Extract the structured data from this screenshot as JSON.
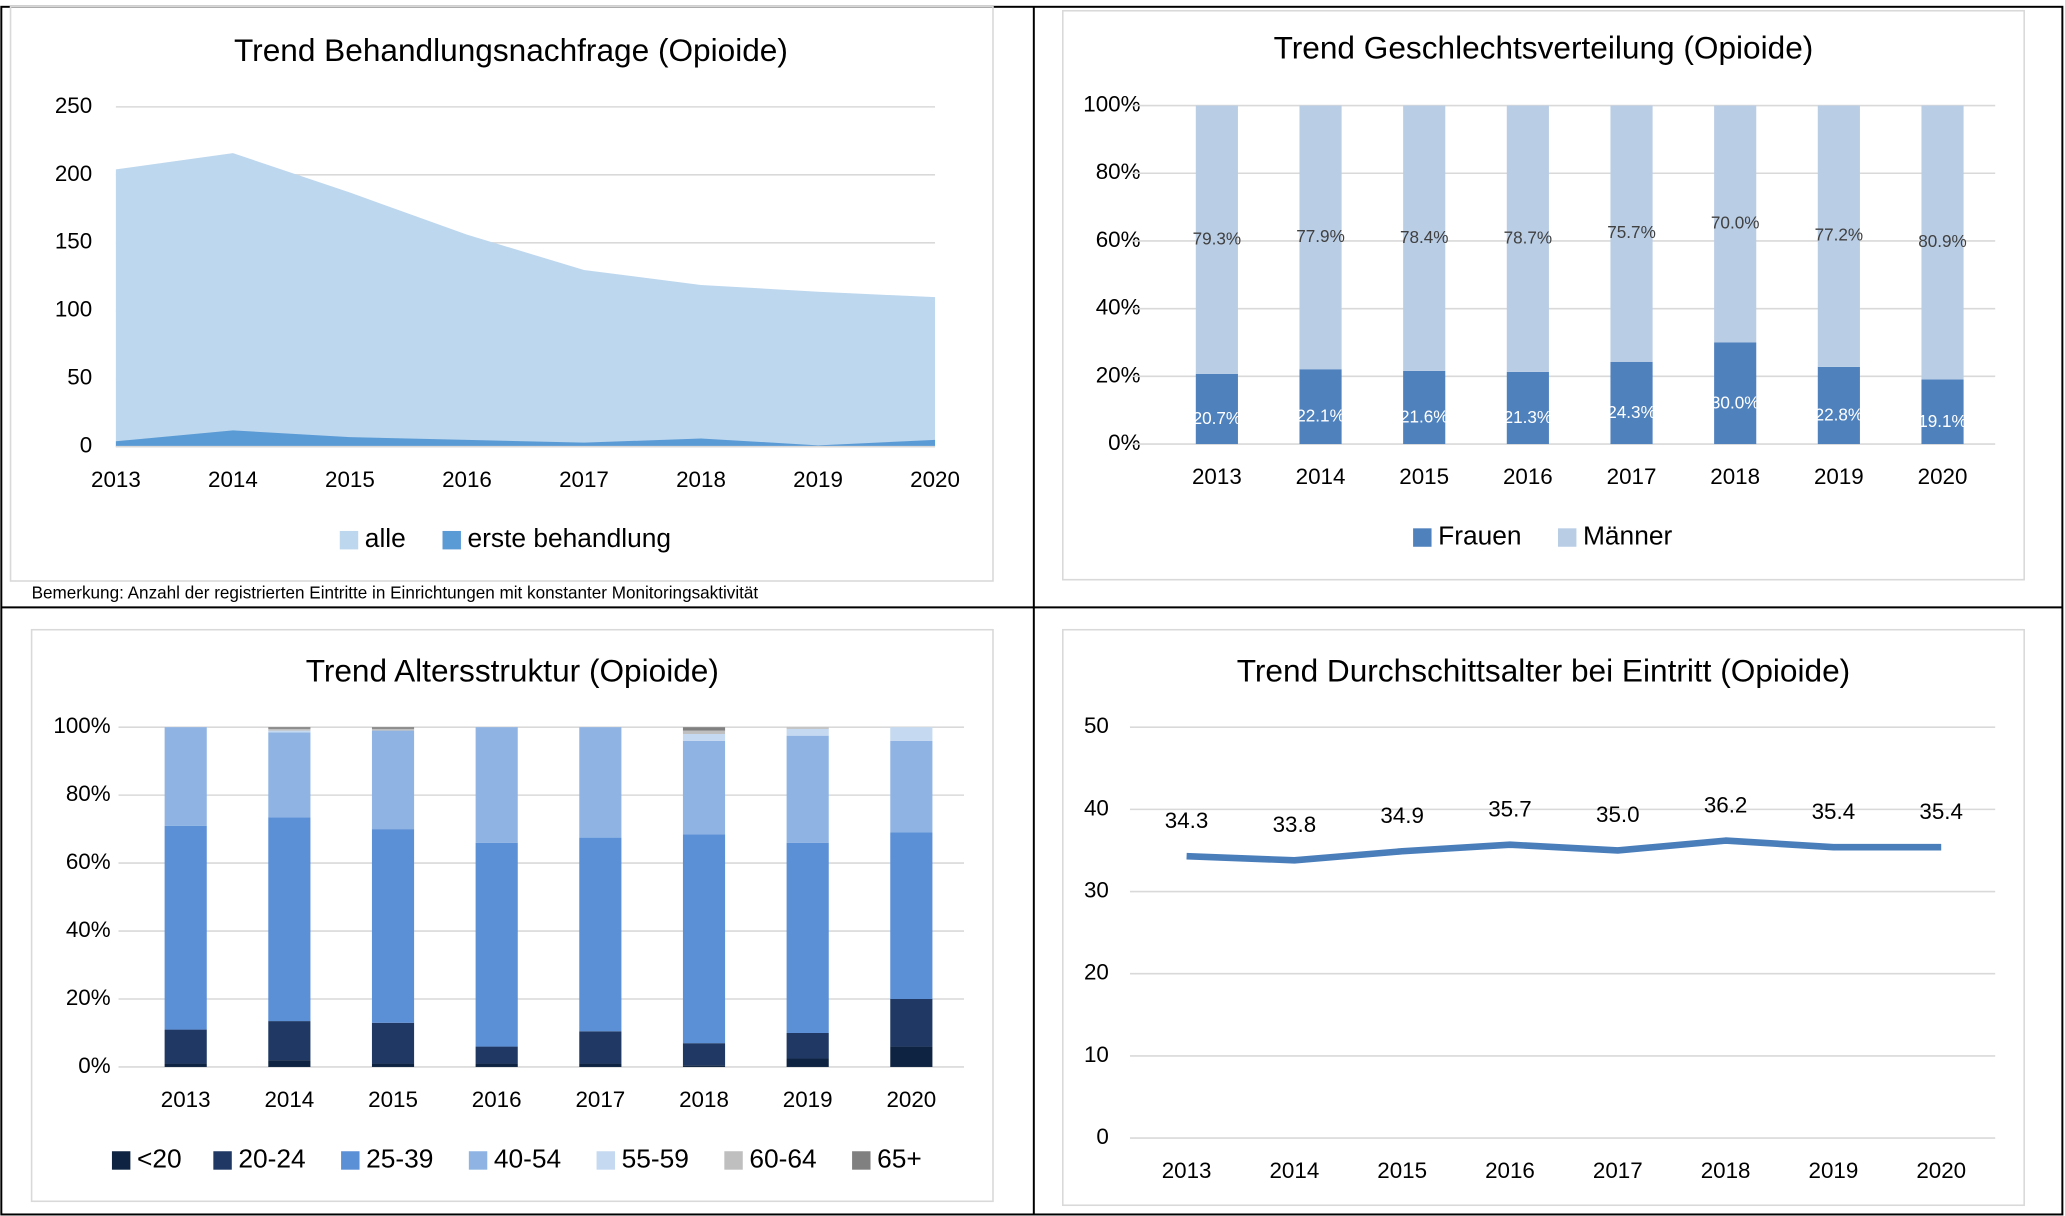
{
  "chart_data": [
    {
      "type": "area",
      "title": "Trend Behandlungsnachfrage (Opioide)",
      "categories": [
        "2013",
        "2014",
        "2015",
        "2016",
        "2017",
        "2018",
        "2019",
        "2020"
      ],
      "series": [
        {
          "name": "alle",
          "color": "#bdd7ee",
          "values": [
            204,
            216,
            187,
            156,
            130,
            119,
            114,
            110
          ]
        },
        {
          "name": "erste behandlung",
          "color": "#5b9bd5",
          "values": [
            4,
            12,
            7,
            5,
            3,
            6,
            1,
            5
          ]
        }
      ],
      "ylim": [
        0,
        250
      ],
      "yticks": [
        0,
        50,
        100,
        150,
        200,
        250
      ],
      "grid": true,
      "note": "Bemerkung: Anzahl der registrierten Eintritte in Einrichtungen mit konstanter Monitoringsaktivität"
    },
    {
      "type": "stacked_bar",
      "title": "Trend Geschlechtsverteilung (Opioide)",
      "categories": [
        "2013",
        "2014",
        "2015",
        "2016",
        "2017",
        "2018",
        "2019",
        "2020"
      ],
      "series": [
        {
          "name": "Frauen",
          "color": "#4f81bd",
          "values": [
            20.7,
            22.1,
            21.6,
            21.3,
            24.3,
            30.0,
            22.8,
            19.1
          ],
          "value_labels": [
            "20.7%",
            "22.1%",
            "21.6%",
            "21.3%",
            "24.3%",
            "30.0%",
            "22.8%",
            "19.1%"
          ]
        },
        {
          "name": "Männer",
          "color": "#b9cde5",
          "values": [
            79.3,
            77.9,
            78.4,
            78.7,
            75.7,
            70.0,
            77.2,
            80.9
          ],
          "value_labels": [
            "79.3%",
            "77.9%",
            "78.4%",
            "78.7%",
            "75.7%",
            "70.0%",
            "77.2%",
            "80.9%"
          ]
        }
      ],
      "ylim": [
        0,
        100
      ],
      "yticks": [
        {
          "value": 0,
          "label": "0%"
        },
        {
          "value": 20,
          "label": "20%"
        },
        {
          "value": 40,
          "label": "40%"
        },
        {
          "value": 60,
          "label": "60%"
        },
        {
          "value": 80,
          "label": "80%"
        },
        {
          "value": 100,
          "label": "100%"
        }
      ],
      "grid": true
    },
    {
      "type": "stacked_bar",
      "title": "Trend Altersstruktur (Opioide)",
      "categories": [
        "2013",
        "2014",
        "2015",
        "2016",
        "2017",
        "2018",
        "2019",
        "2020"
      ],
      "series": [
        {
          "name": "<20",
          "color": "#0d2341",
          "values": [
            1,
            2,
            1,
            1,
            1,
            0.5,
            2.5,
            6
          ]
        },
        {
          "name": "20-24",
          "color": "#1f3864",
          "values": [
            10,
            11.5,
            12,
            5,
            9.5,
            6.5,
            7.5,
            14
          ]
        },
        {
          "name": "25-39",
          "color": "#5b8fd6",
          "values": [
            60,
            60,
            57,
            60,
            57,
            61.5,
            56,
            49
          ]
        },
        {
          "name": "40-54",
          "color": "#8fb4e3",
          "values": [
            29,
            25,
            29,
            34,
            32.5,
            27.5,
            31.5,
            27
          ]
        },
        {
          "name": "55-59",
          "color": "#c5d9f1",
          "values": [
            0,
            0.5,
            0,
            0,
            0,
            2,
            2,
            4
          ]
        },
        {
          "name": "60-64",
          "color": "#bfbfbf",
          "values": [
            0,
            0.5,
            0.5,
            0,
            0,
            1,
            0.5,
            0
          ]
        },
        {
          "name": "65+",
          "color": "#808080",
          "values": [
            0,
            0.5,
            0.5,
            0,
            0,
            1,
            0,
            0
          ]
        }
      ],
      "ylim": [
        0,
        100
      ],
      "yticks": [
        {
          "value": 0,
          "label": "0%"
        },
        {
          "value": 20,
          "label": "20%"
        },
        {
          "value": 40,
          "label": "40%"
        },
        {
          "value": 60,
          "label": "60%"
        },
        {
          "value": 80,
          "label": "80%"
        },
        {
          "value": 100,
          "label": "100%"
        }
      ],
      "grid": true
    },
    {
      "type": "line",
      "title": "Trend Durchschittsalter bei Eintritt (Opioide)",
      "categories": [
        "2013",
        "2014",
        "2015",
        "2016",
        "2017",
        "2018",
        "2019",
        "2020"
      ],
      "series": [
        {
          "name": "Durchschnittsalter",
          "color": "#4a7ebb",
          "values": [
            34.3,
            33.8,
            34.9,
            35.7,
            35.0,
            36.2,
            35.4,
            35.4
          ],
          "value_labels": [
            "34.3",
            "33.8",
            "34.9",
            "35.7",
            "35.0",
            "36.2",
            "35.4",
            "35.4"
          ]
        }
      ],
      "ylim": [
        0,
        50
      ],
      "yticks": [
        0,
        10,
        20,
        30,
        40,
        50
      ],
      "grid": true
    }
  ]
}
